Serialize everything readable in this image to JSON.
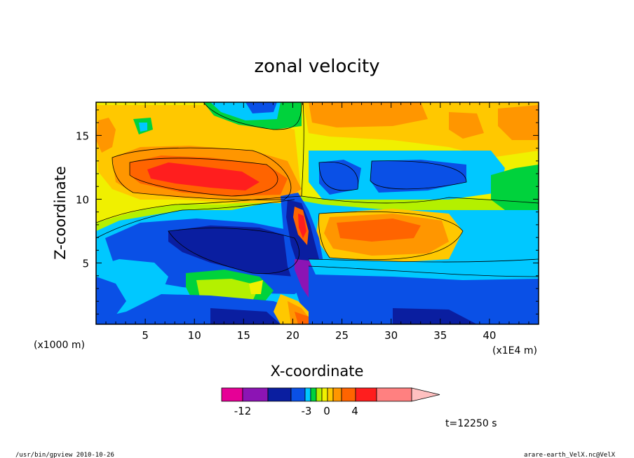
{
  "chart_data": {
    "type": "heatmap",
    "title": "zonal velocity",
    "xlabel": "X-coordinate",
    "ylabel": "Z-coordinate",
    "x_unit_label": "(x1E4 m)",
    "y_unit_label": "(x1000 m)",
    "xlim": [
      0,
      45
    ],
    "ylim": [
      0.2,
      17.6
    ],
    "x_ticks": [
      "5",
      "10",
      "15",
      "20",
      "25",
      "30",
      "35",
      "40"
    ],
    "y_ticks": [
      "5",
      "10",
      "15"
    ],
    "x_tick_values": [
      5,
      10,
      15,
      20,
      25,
      30,
      35,
      40
    ],
    "y_tick_values": [
      5,
      10,
      15
    ],
    "colorbar": {
      "labels": [
        "-12",
        "-3",
        "0",
        "4"
      ],
      "label_values": [
        -12,
        -3,
        0,
        4
      ],
      "colors": [
        "#e60096",
        "#8c14b4",
        "#0a1ea0",
        "#0a50e6",
        "#00c8ff",
        "#00d23c",
        "#b4f000",
        "#f0f000",
        "#ffc800",
        "#ff9600",
        "#ff6400",
        "#ff1e1e",
        "#ff8080",
        "#ffc0c0"
      ]
    },
    "time_label": "t=12250 s"
  },
  "footer": {
    "left": "/usr/bin/gpview   2010-10-26",
    "right": "arare-earth_VelX.nc@VelX"
  }
}
